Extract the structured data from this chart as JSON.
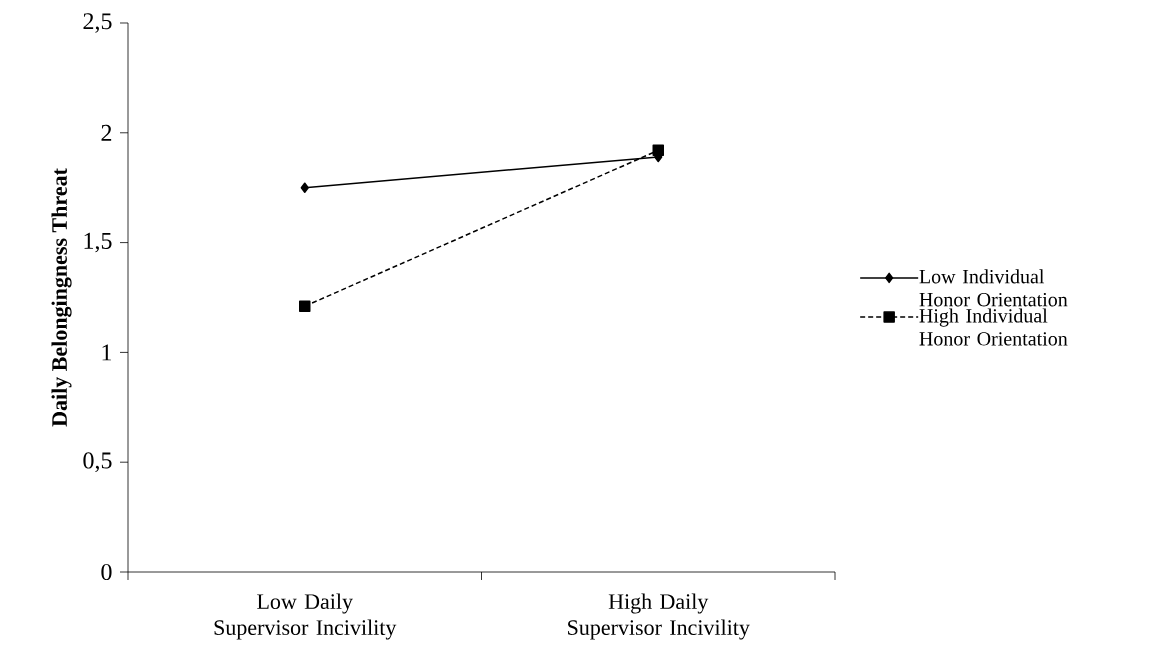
{
  "chart_data": {
    "type": "line",
    "ylabel": "Daily Belongingness Threat",
    "categories": [
      "Low Daily Supervisor Incivility",
      "High Daily Supervisor Incivility"
    ],
    "series": [
      {
        "name": "Low Individual Honor Orientation",
        "color": "#000000",
        "marker": "diamond",
        "line_style": "solid",
        "values": [
          1.75,
          1.89
        ]
      },
      {
        "name": "High Individual Honor Orientation",
        "color": "#000000",
        "marker": "square",
        "line_style": "dashed",
        "values": [
          1.21,
          1.92
        ]
      }
    ],
    "ylim": [
      0,
      2.5
    ],
    "yticks": [
      0,
      {
        "value": 0.5,
        "label": "0,5"
      },
      1,
      {
        "value": 1.5,
        "label": "1,5"
      },
      2,
      {
        "value": 2.5,
        "label": "2,5"
      }
    ],
    "grid": false,
    "legend": "right"
  }
}
